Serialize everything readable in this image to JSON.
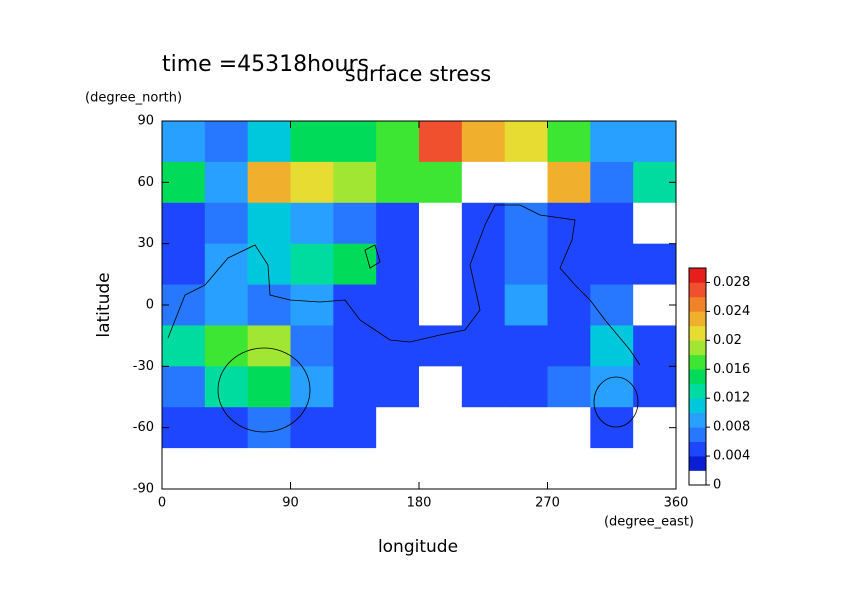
{
  "chart_data": {
    "type": "contour",
    "title": "surface stress",
    "subtitle": "time =45318hours",
    "x_label": "longitude",
    "x_unit": "(degree_east)",
    "y_label": "latitude",
    "y_unit": "(degree_north)",
    "xlim": [
      0,
      360
    ],
    "xticks": [
      0,
      90,
      180,
      270,
      360
    ],
    "ylim": [
      -90,
      90
    ],
    "yticks": [
      -90,
      -60,
      -30,
      0,
      30,
      60,
      90
    ],
    "x": [
      15,
      45,
      75,
      105,
      135,
      165,
      195,
      225,
      255,
      285,
      315,
      345
    ],
    "y": [
      80,
      60,
      40,
      20,
      0,
      -20,
      -40,
      -60,
      -80
    ],
    "z": [
      [
        0.008,
        0.006,
        0.01,
        0.014,
        0.014,
        0.016,
        0.026,
        0.022,
        0.02,
        0.016,
        0.008,
        0.008
      ],
      [
        0.014,
        0.008,
        0.022,
        0.02,
        0.018,
        0.016,
        0.016,
        0.001,
        0.001,
        0.022,
        0.006,
        0.012
      ],
      [
        0.004,
        0.006,
        0.01,
        0.008,
        0.006,
        0.004,
        0.001,
        0.004,
        0.006,
        0.004,
        0.004,
        0.001
      ],
      [
        0.004,
        0.008,
        0.01,
        0.012,
        0.014,
        0.004,
        0.001,
        0.004,
        0.006,
        0.004,
        0.004,
        0.004
      ],
      [
        0.006,
        0.008,
        0.006,
        0.008,
        0.004,
        0.004,
        0.001,
        0.004,
        0.008,
        0.004,
        0.006,
        0.001
      ],
      [
        0.012,
        0.016,
        0.018,
        0.006,
        0.004,
        0.004,
        0.004,
        0.004,
        0.004,
        0.004,
        0.01,
        0.004
      ],
      [
        0.006,
        0.012,
        0.014,
        0.008,
        0.004,
        0.004,
        0.001,
        0.004,
        0.004,
        0.006,
        0.008,
        0.004
      ],
      [
        0.004,
        0.004,
        0.006,
        0.004,
        0.004,
        0.001,
        0.001,
        0.001,
        0.001,
        0.001,
        0.004,
        0.001
      ],
      [
        0.001,
        0.001,
        0.001,
        0.001,
        0.001,
        0.001,
        0.001,
        0.001,
        0.001,
        0.001,
        0.001,
        0.001
      ]
    ],
    "levels": [
      0,
      0.002,
      0.004,
      0.006,
      0.008,
      0.01,
      0.012,
      0.014,
      0.016,
      0.018,
      0.02,
      0.022,
      0.024,
      0.026,
      0.028,
      0.03
    ],
    "colors": [
      "#ffffff",
      "#0a1ed2",
      "#1e46ff",
      "#2878ff",
      "#28a0ff",
      "#00c8dc",
      "#00dca0",
      "#00dc5a",
      "#3ce632",
      "#a0e632",
      "#e6dc32",
      "#f0af2d",
      "#f08228",
      "#f0502d",
      "#e61e1e"
    ],
    "colorbar_ticks": [
      0,
      0.004,
      0.008,
      0.012,
      0.016,
      0.02,
      0.024,
      0.028
    ]
  }
}
